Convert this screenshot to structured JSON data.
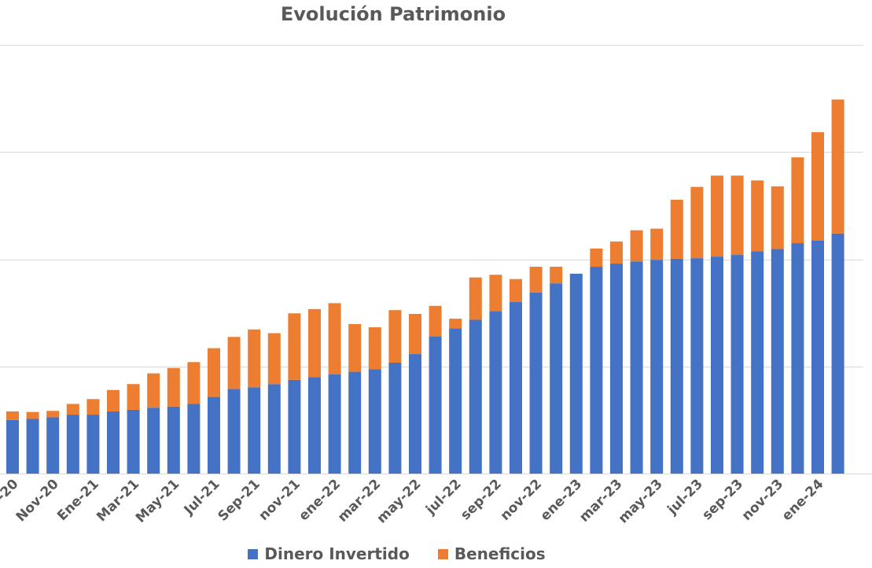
{
  "chart_data": {
    "type": "bar",
    "stacked": true,
    "title": "Evolución Patrimonio",
    "xlabel": "",
    "ylabel": "",
    "ylim": [
      0,
      80000
    ],
    "y_ticks": [
      0,
      20000,
      40000,
      60000,
      80000
    ],
    "grid": true,
    "legend_position": "bottom",
    "categories": [
      "Sep-20",
      "Oct-20",
      "Nov-20",
      "Dic-20",
      "Ene-21",
      "Feb-21",
      "Mar-21",
      "Abr-21",
      "May-21",
      "Jun-21",
      "Jul-21",
      "Ago-21",
      "Sep-21",
      "oct-21",
      "nov-21",
      "dic-21",
      "ene-22",
      "feb-22",
      "mar-22",
      "abr-22",
      "may-22",
      "jun-22",
      "jul-22",
      "ago-22",
      "sep-22",
      "oct-22",
      "nov-22",
      "dic-22",
      "ene-23",
      "feb-23",
      "mar-23",
      "abr-23",
      "may-23",
      "jun-23",
      "jul-23",
      "ago-23",
      "sep-23",
      "oct-23",
      "nov-23",
      "dic-23",
      "ene-24",
      "feb-24"
    ],
    "tick_labels": [
      "Sep-20",
      "Nov-20",
      "Ene-21",
      "Mar-21",
      "May-21",
      "Jul-21",
      "Sep-21",
      "nov-21",
      "ene-22",
      "mar-22",
      "may-22",
      "jul-22",
      "sep-22",
      "nov-22",
      "ene-23",
      "mar-23",
      "may-23",
      "jul-23",
      "sep-23",
      "nov-23",
      "ene-24"
    ],
    "series": [
      {
        "name": "Dinero Invertido",
        "color": "#4472C4",
        "values": [
          10000,
          10200,
          10500,
          11000,
          11000,
          11600,
          11900,
          12300,
          12500,
          13000,
          14300,
          15800,
          16100,
          16700,
          17500,
          18000,
          18500,
          19000,
          19500,
          20700,
          22300,
          25600,
          27100,
          28700,
          30300,
          32000,
          33800,
          35500,
          37300,
          38600,
          39200,
          39600,
          39900,
          40100,
          40200,
          40500,
          40800,
          41500,
          41900,
          43000,
          43500,
          44800
        ]
      },
      {
        "name": "Beneficios",
        "color": "#ED7D31",
        "values": [
          1600,
          1300,
          1200,
          2000,
          2900,
          4000,
          4800,
          6400,
          7200,
          7800,
          9100,
          9700,
          10800,
          9500,
          12400,
          12700,
          13300,
          8900,
          7800,
          9800,
          7500,
          5700,
          1800,
          7900,
          6800,
          4300,
          4800,
          3100,
          0,
          3400,
          4100,
          5800,
          5800,
          11000,
          13300,
          15100,
          14800,
          13200,
          11700,
          16000,
          20200,
          25000
        ]
      }
    ]
  }
}
